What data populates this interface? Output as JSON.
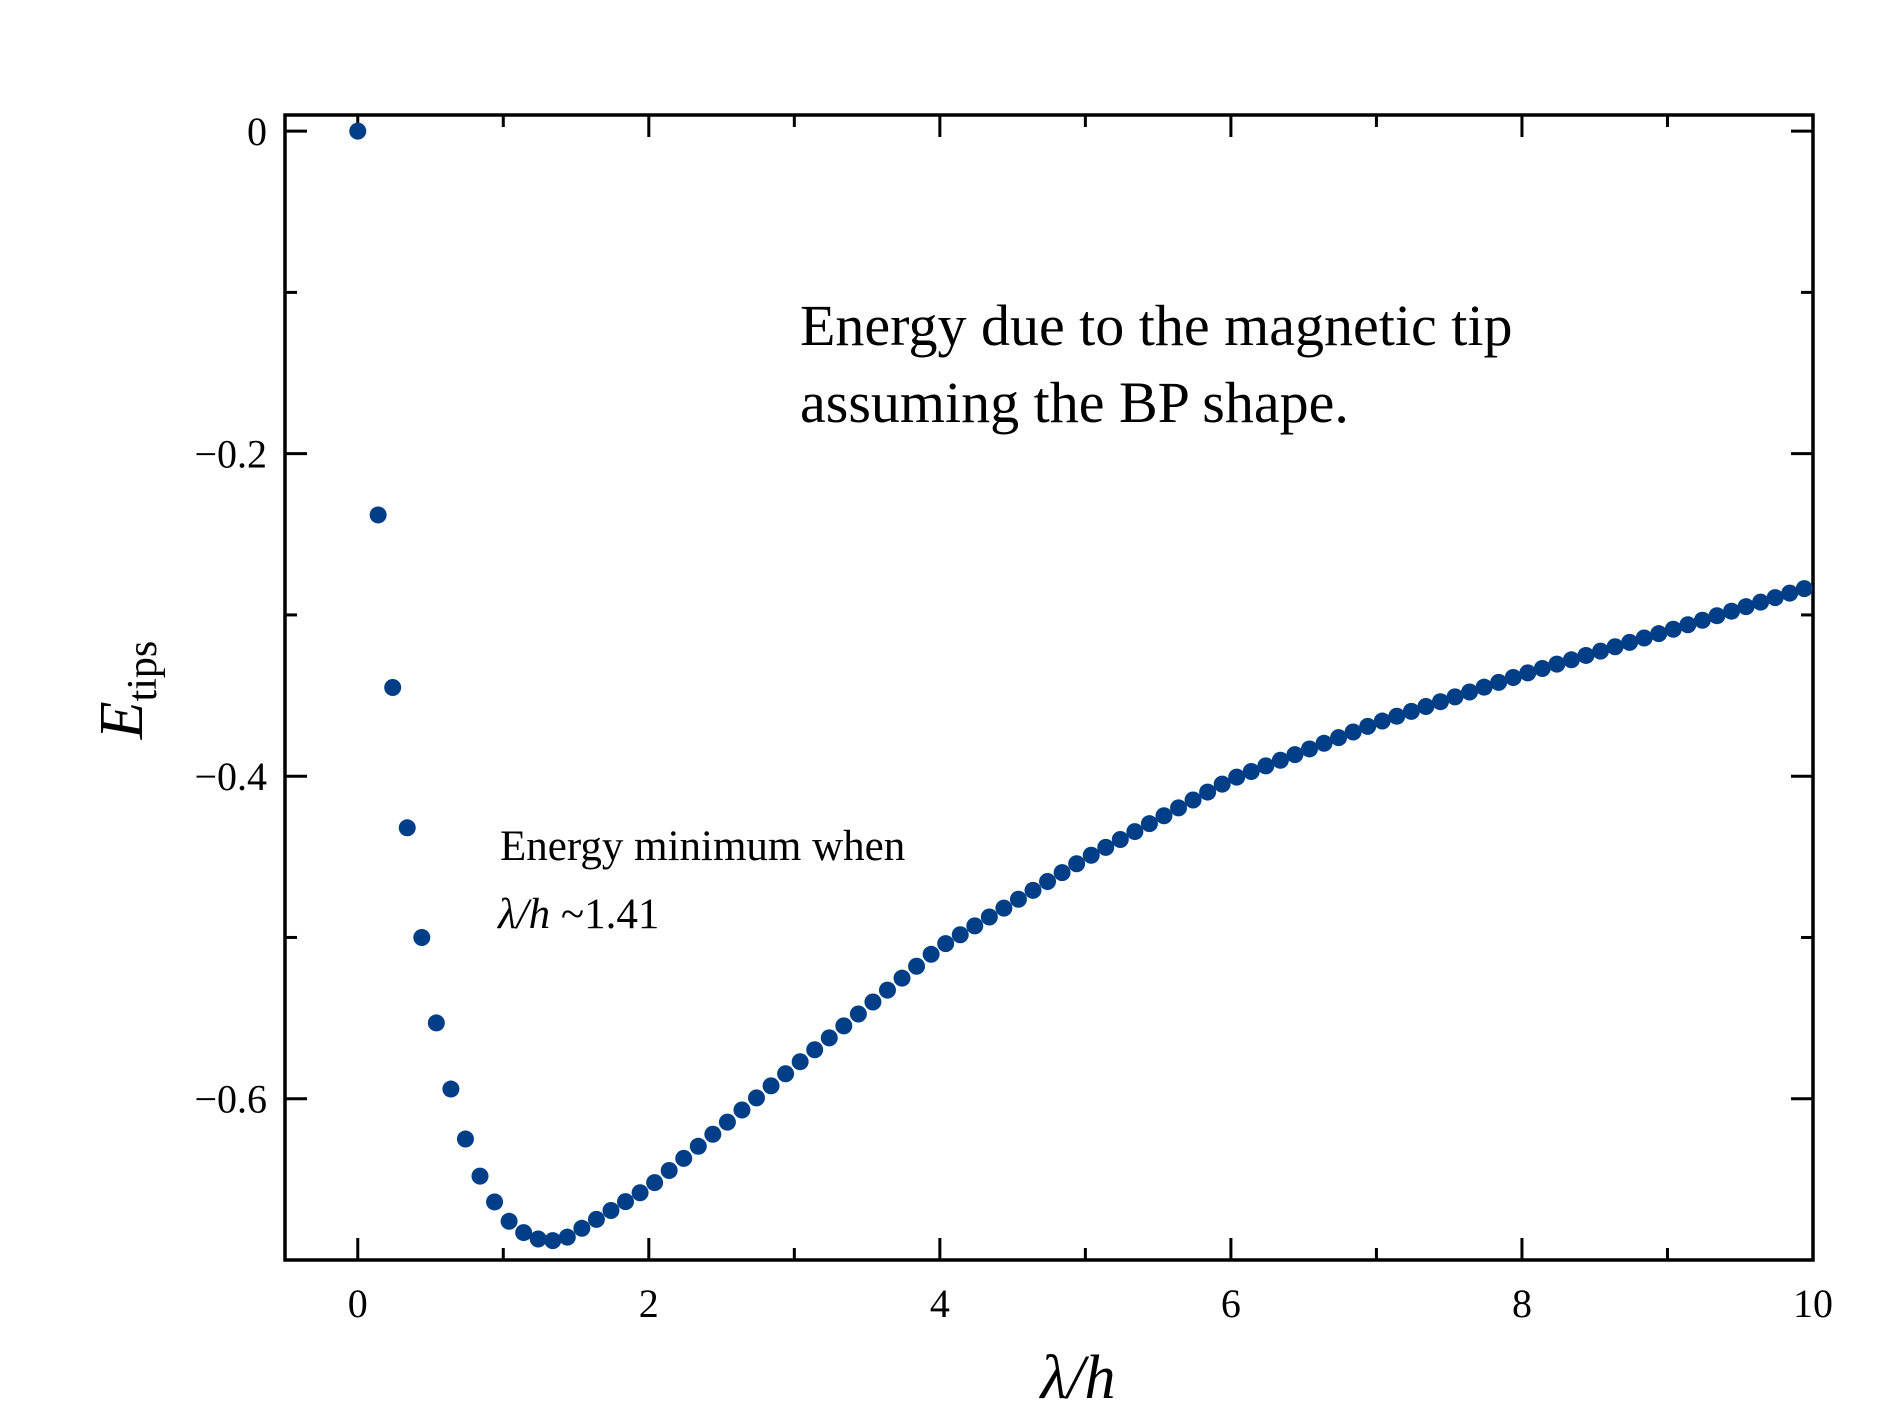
{
  "chart_data": {
    "type": "scatter",
    "title": "",
    "xlabel": "λ/h",
    "ylabel": {
      "main": "E",
      "sub": "tips"
    },
    "xlim": [
      -0.5,
      10
    ],
    "ylim": [
      -0.7,
      0.01
    ],
    "xticks": [
      0,
      2,
      4,
      6,
      8,
      10
    ],
    "xtick_labels": [
      "0",
      "2",
      "4",
      "6",
      "8",
      "10"
    ],
    "yticks": [
      0,
      -0.2,
      -0.4,
      -0.6
    ],
    "ytick_labels": [
      "0",
      "−0.2",
      "−0.4",
      "−0.6"
    ],
    "x_minor_ticks": [
      1,
      3,
      5,
      7,
      9
    ],
    "y_minor_ticks": [
      -0.1,
      -0.3,
      -0.5
    ],
    "marker_color": "#003f87",
    "grid": false,
    "series": [
      {
        "name": "E_tips",
        "x_start": 0,
        "x_step": 0.1,
        "x_end": 10,
        "minimum": {
          "x": 1.41,
          "y": -0.6875
        },
        "first_points": [
          {
            "x": 0.0,
            "y": 0.0
          },
          {
            "x": 0.14,
            "y": -0.238
          },
          {
            "x": 0.24,
            "y": -0.345
          },
          {
            "x": 0.34,
            "y": -0.432
          },
          {
            "x": 0.44,
            "y": -0.5
          },
          {
            "x": 0.54,
            "y": -0.553
          },
          {
            "x": 0.64,
            "y": -0.594
          },
          {
            "x": 0.74,
            "y": -0.625
          },
          {
            "x": 0.84,
            "y": -0.648
          },
          {
            "x": 0.94,
            "y": -0.664
          },
          {
            "x": 1.04,
            "y": -0.676
          },
          {
            "x": 1.14,
            "y": -0.683
          },
          {
            "x": 1.24,
            "y": -0.687
          },
          {
            "x": 1.34,
            "y": -0.688
          }
        ],
        "anchor_points": [
          {
            "x": 1.41,
            "y": -0.6875
          },
          {
            "x": 2.0,
            "y": -0.655
          },
          {
            "x": 3.0,
            "y": -0.58
          },
          {
            "x": 4.0,
            "y": -0.506
          },
          {
            "x": 5.0,
            "y": -0.451
          },
          {
            "x": 6.0,
            "y": -0.402
          },
          {
            "x": 7.0,
            "y": -0.367
          },
          {
            "x": 8.0,
            "y": -0.337
          },
          {
            "x": 9.0,
            "y": -0.31
          },
          {
            "x": 10.0,
            "y": -0.282
          }
        ]
      }
    ],
    "annotations": [
      {
        "id": "title_note",
        "lines": [
          "Energy due to the magnetic tip",
          "assuming the BP shape."
        ]
      },
      {
        "id": "min_note",
        "line1": "Energy minimum when",
        "line2_math": "λ/h",
        "line2_rest": " ~1.41"
      }
    ]
  }
}
